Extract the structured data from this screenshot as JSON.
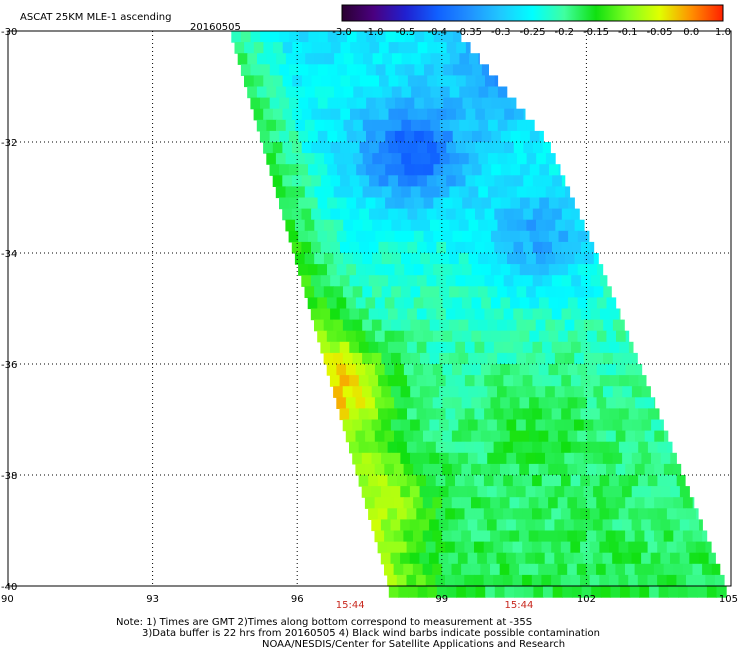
{
  "header": {
    "title": "ASCAT 25KM MLE-1 ascending",
    "date": "20160505"
  },
  "colorbar": {
    "labels": [
      "-3.0",
      "-1.0",
      "-0.5",
      "-0.4",
      "-0.35",
      "-0.3",
      "-0.25",
      "-0.2",
      "-0.15",
      "-0.1",
      "-0.05",
      "0.0",
      "1.0"
    ],
    "colors": [
      "#2a0030",
      "#4a0080",
      "#2020d0",
      "#1060ff",
      "#2090ff",
      "#20c8ff",
      "#00ffff",
      "#40ffa0",
      "#10e010",
      "#80ff20",
      "#e0ff00",
      "#ff9000",
      "#ff2000"
    ]
  },
  "map": {
    "lon_ticks": [
      "90",
      "93",
      "96",
      "99",
      "102",
      "105"
    ],
    "lat_ticks": [
      "-30",
      "-32",
      "-34",
      "-36",
      "-38",
      "-40"
    ],
    "time_labels": [
      {
        "lon": 97.1,
        "text": "15:44"
      },
      {
        "lon": 100.6,
        "text": "15:44"
      }
    ],
    "swath": {
      "lon_min": 90,
      "lon_max": 105,
      "lat_top": -30,
      "lat_bottom": -40,
      "left_edge": [
        [
          -30,
          94.6
        ],
        [
          -40,
          97.9
        ]
      ],
      "right_edge": [
        [
          -30,
          99.3
        ],
        [
          -32,
          101.2
        ],
        [
          -34,
          102.2
        ],
        [
          -36,
          103.1
        ],
        [
          -38,
          104.0
        ],
        [
          -40,
          104.9
        ]
      ]
    },
    "field_features": [
      {
        "name": "blue-low-north",
        "lat": -30.6,
        "lon": 100.6,
        "value": -0.38
      },
      {
        "name": "blue-low-center",
        "lat": -32.2,
        "lon": 98.4,
        "value": -0.4
      },
      {
        "name": "blue-low-east",
        "lat": -33.7,
        "lon": 101.0,
        "value": -0.33
      },
      {
        "name": "green-patch-south",
        "lat": -37.2,
        "lon": 101.0,
        "value": -0.16
      },
      {
        "name": "yellow-edge",
        "lat": -38.5,
        "lon": 97.6,
        "value": -0.08
      },
      {
        "name": "orange-edge",
        "lat": -36.4,
        "lon": 96.7,
        "value": -0.02
      }
    ]
  },
  "notes": {
    "line1": "Note: 1) Times are GMT 2)Times along bottom correspond to measurement at -35S",
    "line2": "3)Data buffer is 22 hrs from 20160505 4) Black wind barbs indicate possible contamination",
    "line3": "NOAA/NESDIS/Center for Satellite Applications and Research"
  }
}
